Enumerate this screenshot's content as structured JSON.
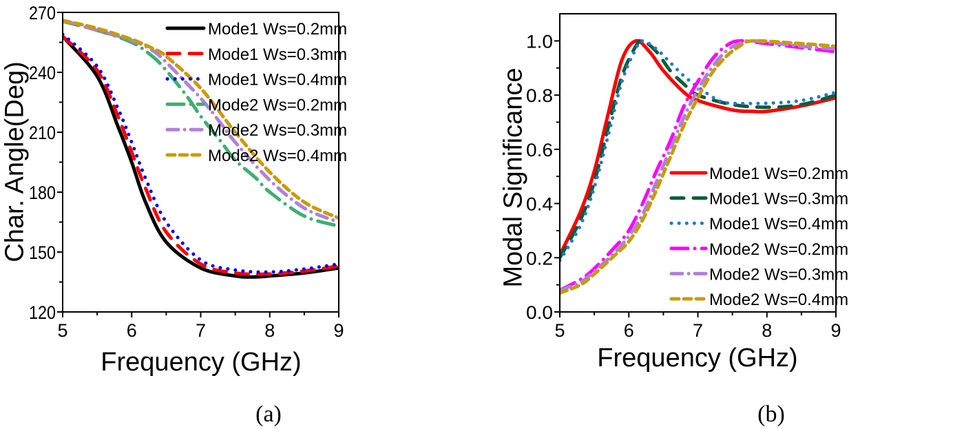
{
  "chart_data": [
    {
      "type": "line",
      "caption": "(a)",
      "xlabel": "Frequency (GHz)",
      "ylabel": "Char. Angle(Deg)",
      "xlim": [
        5,
        9
      ],
      "ylim": [
        120,
        270
      ],
      "xticks": [
        5,
        6,
        7,
        8,
        9
      ],
      "yticks": [
        120,
        150,
        180,
        210,
        240,
        270
      ],
      "grid": false,
      "legend_position": "top-right",
      "series": [
        {
          "name": "Mode1 Ws=0.2mm",
          "color": "#000000",
          "style": "solid",
          "x": [
            5,
            5.5,
            5.8,
            6,
            6.2,
            6.5,
            7,
            7.5,
            7.75,
            8,
            8.5,
            9
          ],
          "y": [
            258,
            238,
            213,
            195,
            175,
            155,
            142,
            138,
            137.5,
            138,
            139.5,
            142
          ]
        },
        {
          "name": "Mode1 Ws=0.3mm",
          "color": "#ff0000",
          "style": "dash",
          "x": [
            5,
            5.5,
            5.8,
            6,
            6.2,
            6.5,
            7,
            7.5,
            8,
            8.5,
            9
          ],
          "y": [
            258,
            241,
            218,
            200,
            182,
            160,
            144,
            139.5,
            139,
            140.5,
            143
          ]
        },
        {
          "name": "Mode1 Ws=0.4mm",
          "color": "#0000ff",
          "style": "dot",
          "x": [
            5,
            5.5,
            5.8,
            6,
            6.2,
            6.5,
            7,
            7.5,
            8,
            8.5,
            9
          ],
          "y": [
            259,
            243,
            222,
            205,
            187,
            165,
            146,
            141,
            140,
            141.5,
            144
          ]
        },
        {
          "name": "Mode2 Ws=0.2mm",
          "color": "#3cb070",
          "style": "dashdot",
          "x": [
            5,
            5.5,
            6,
            6.3,
            6.5,
            6.8,
            7,
            7.3,
            7.5,
            7.8,
            8,
            8.5,
            9
          ],
          "y": [
            265.5,
            261,
            255,
            248,
            241,
            228,
            218,
            205,
            196,
            187,
            180,
            168,
            163
          ]
        },
        {
          "name": "Mode2 Ws=0.3mm",
          "color": "#b07fe0",
          "style": "dashdotshort",
          "x": [
            5,
            5.5,
            6,
            6.3,
            6.5,
            7,
            7.3,
            7.5,
            8,
            8.5,
            9
          ],
          "y": [
            266,
            261,
            256,
            251,
            245,
            227,
            214,
            205,
            186,
            172,
            165
          ]
        },
        {
          "name": "Mode2 Ws=0.4mm",
          "color": "#cc9a06",
          "style": "shortdash",
          "x": [
            5,
            5.5,
            6,
            6.3,
            6.5,
            7,
            7.5,
            8,
            8.5,
            9
          ],
          "y": [
            266,
            262,
            256.5,
            252,
            248,
            232,
            210,
            190,
            175,
            167
          ]
        }
      ]
    },
    {
      "type": "line",
      "caption": "(b)",
      "xlabel": "Frequency (GHz)",
      "ylabel": "Modal Significance",
      "xlim": [
        5,
        9
      ],
      "ylim": [
        0.0,
        1.1
      ],
      "xticks": [
        5,
        6,
        7,
        8,
        9
      ],
      "yticks": [
        0.0,
        0.2,
        0.4,
        0.6,
        0.8,
        1.0
      ],
      "grid": false,
      "legend_position": "bottom-right",
      "series": [
        {
          "name": "Mode1 Ws=0.2mm",
          "color": "#ff0000",
          "style": "solid",
          "x": [
            5,
            5.3,
            5.5,
            5.7,
            5.9,
            6.1,
            6.3,
            6.5,
            6.8,
            7,
            7.5,
            7.8,
            8,
            8.5,
            9
          ],
          "y": [
            0.21,
            0.37,
            0.52,
            0.73,
            0.93,
            1.0,
            0.96,
            0.89,
            0.81,
            0.78,
            0.745,
            0.74,
            0.74,
            0.76,
            0.79
          ]
        },
        {
          "name": "Mode1 Ws=0.3mm",
          "color": "#0b5e3a",
          "style": "dash",
          "x": [
            5,
            5.3,
            5.5,
            5.7,
            5.9,
            6.1,
            6.2,
            6.4,
            6.6,
            6.8,
            7,
            7.5,
            8,
            8.5,
            9
          ],
          "y": [
            0.2,
            0.34,
            0.48,
            0.68,
            0.87,
            0.98,
            1.0,
            0.96,
            0.89,
            0.84,
            0.8,
            0.765,
            0.755,
            0.765,
            0.8
          ]
        },
        {
          "name": "Mode1 Ws=0.4mm",
          "color": "#1f77dd",
          "style": "dot",
          "x": [
            5,
            5.3,
            5.5,
            5.7,
            5.9,
            6.1,
            6.2,
            6.4,
            6.6,
            6.8,
            7,
            7.3,
            7.5,
            8,
            8.5,
            9
          ],
          "y": [
            0.19,
            0.32,
            0.46,
            0.65,
            0.85,
            0.97,
            1.0,
            0.97,
            0.92,
            0.87,
            0.83,
            0.78,
            0.77,
            0.77,
            0.78,
            0.81
          ]
        },
        {
          "name": "Mode2 Ws=0.2mm",
          "color": "#ff00ff",
          "style": "dashdot",
          "x": [
            5,
            5.3,
            5.5,
            5.8,
            6,
            6.2,
            6.4,
            6.6,
            6.8,
            7,
            7.2,
            7.4,
            7.6,
            8,
            8.5,
            9
          ],
          "y": [
            0.08,
            0.12,
            0.16,
            0.24,
            0.3,
            0.4,
            0.52,
            0.63,
            0.76,
            0.85,
            0.93,
            0.98,
            1.0,
            0.99,
            0.975,
            0.96
          ]
        },
        {
          "name": "Mode2 Ws=0.3mm",
          "color": "#b07fe0",
          "style": "dashdotshort",
          "x": [
            5,
            5.3,
            5.5,
            5.8,
            6,
            6.2,
            6.4,
            6.6,
            6.8,
            7,
            7.2,
            7.4,
            7.6,
            7.8,
            8.5,
            9
          ],
          "y": [
            0.08,
            0.11,
            0.15,
            0.22,
            0.28,
            0.36,
            0.48,
            0.6,
            0.72,
            0.82,
            0.9,
            0.96,
            0.99,
            1.0,
            0.98,
            0.97
          ]
        },
        {
          "name": "Mode2 Ws=0.4mm",
          "color": "#cc9a06",
          "style": "shortdash",
          "x": [
            5,
            5.3,
            5.5,
            5.8,
            6,
            6.2,
            6.4,
            6.6,
            6.8,
            7,
            7.2,
            7.4,
            7.6,
            7.8,
            8.5,
            9
          ],
          "y": [
            0.07,
            0.1,
            0.14,
            0.21,
            0.26,
            0.34,
            0.45,
            0.57,
            0.69,
            0.79,
            0.88,
            0.94,
            0.98,
            1.0,
            0.99,
            0.98
          ]
        }
      ]
    }
  ]
}
